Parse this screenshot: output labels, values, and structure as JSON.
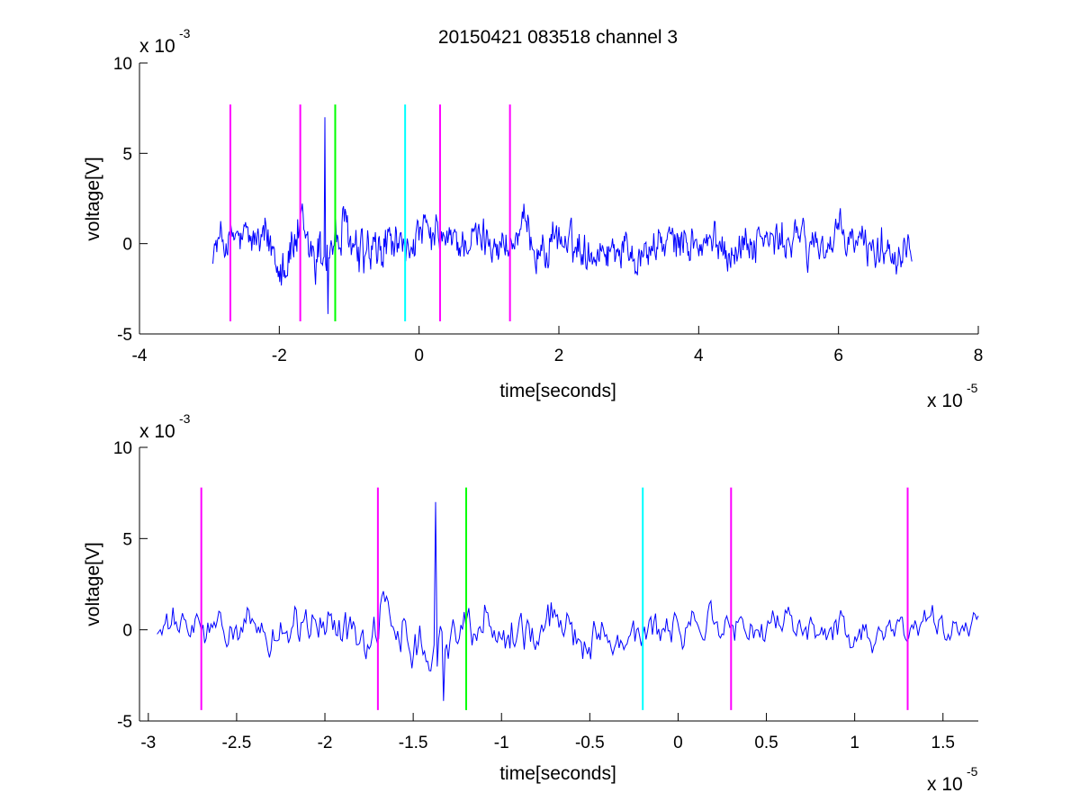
{
  "figure": {
    "title": "20150421 083518 channel 3"
  },
  "colors": {
    "signal": "#0000ff",
    "magenta": "#ff00ff",
    "green": "#00ff00",
    "cyan": "#00ffff",
    "axes": "#000000"
  },
  "chart_data": [
    {
      "type": "line",
      "title": "20150421 083518 channel 3",
      "xlabel": "time[seconds]",
      "ylabel": "voltage[V]",
      "x_multiplier_label": "x 10",
      "x_multiplier_exponent": "-5",
      "y_multiplier_label": "x 10",
      "y_multiplier_exponent": "-3",
      "xlim": [
        -4,
        8
      ],
      "ylim": [
        -5,
        10
      ],
      "xticks": [
        "-4",
        "-2",
        "0",
        "2",
        "4",
        "6",
        "8"
      ],
      "yticks": [
        "-5",
        "0",
        "5",
        "10"
      ],
      "grid": false,
      "signal_range_x": [
        -2.95,
        7.05
      ],
      "signal_amplitude_typical": 1.2,
      "signal_peak": [
        -1.35,
        7.0
      ],
      "signal_min": [
        -1.3,
        -3.9
      ],
      "markers": [
        {
          "x": -2.7,
          "color": "magenta",
          "ymin": -4.3,
          "ymax": 7.7
        },
        {
          "x": -1.7,
          "color": "magenta",
          "ymin": -4.3,
          "ymax": 7.7
        },
        {
          "x": -1.2,
          "color": "green",
          "ymin": -4.3,
          "ymax": 7.7
        },
        {
          "x": -0.2,
          "color": "cyan",
          "ymin": -4.3,
          "ymax": 7.7
        },
        {
          "x": 0.3,
          "color": "magenta",
          "ymin": -4.3,
          "ymax": 7.7
        },
        {
          "x": 1.3,
          "color": "magenta",
          "ymin": -4.3,
          "ymax": 7.7
        }
      ]
    },
    {
      "type": "line",
      "title": "",
      "xlabel": "time[seconds]",
      "ylabel": "voltage[V]",
      "x_multiplier_label": "x 10",
      "x_multiplier_exponent": "-5",
      "y_multiplier_label": "x 10",
      "y_multiplier_exponent": "-3",
      "xlim": [
        -3.05,
        1.7
      ],
      "ylim": [
        -5,
        10
      ],
      "xticks": [
        "-3",
        "-2.5",
        "-2",
        "-1.5",
        "-1",
        "-0.5",
        "0",
        "0.5",
        "1",
        "1.5"
      ],
      "xtick_values": [
        -3,
        -2.5,
        -2,
        -1.5,
        -1,
        -0.5,
        0,
        0.5,
        1,
        1.5
      ],
      "yticks": [
        "-5",
        "0",
        "5",
        "10"
      ],
      "grid": false,
      "signal_range_x": [
        -2.95,
        1.7
      ],
      "signal_amplitude_typical": 1.0,
      "signal_peak": [
        -1.37,
        7.0
      ],
      "signal_min": [
        -1.33,
        -3.9
      ],
      "markers": [
        {
          "x": -2.7,
          "color": "magenta",
          "ymin": -4.4,
          "ymax": 7.8
        },
        {
          "x": -1.7,
          "color": "magenta",
          "ymin": -4.4,
          "ymax": 7.8
        },
        {
          "x": -1.2,
          "color": "green",
          "ymin": -4.4,
          "ymax": 7.8
        },
        {
          "x": -0.2,
          "color": "cyan",
          "ymin": -4.4,
          "ymax": 7.8
        },
        {
          "x": 0.3,
          "color": "magenta",
          "ymin": -4.4,
          "ymax": 7.8
        },
        {
          "x": 1.3,
          "color": "magenta",
          "ymin": -4.4,
          "ymax": 7.8
        }
      ]
    }
  ]
}
